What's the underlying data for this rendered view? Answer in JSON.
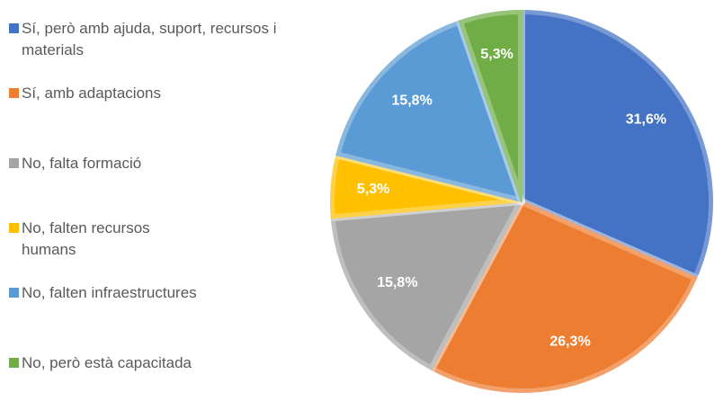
{
  "chart_data": {
    "type": "pie",
    "categories": [
      "Sí, però amb ajuda, suport, recursos i materials",
      "Sí, amb adaptacions",
      "No, falta formació",
      "No, falten recursos humans",
      "No, falten infraestructures",
      "No, però està capacitada"
    ],
    "values": [
      31.6,
      26.3,
      15.8,
      5.3,
      15.8,
      5.3
    ],
    "value_labels": [
      "31,6%",
      "26,3%",
      "15,8%",
      "5,3%",
      "15,8%",
      "5,3%"
    ],
    "colors": [
      "#4472c4",
      "#ed7d31",
      "#a5a5a5",
      "#ffc000",
      "#5b9bd5",
      "#70ad47"
    ],
    "legend": "left"
  }
}
